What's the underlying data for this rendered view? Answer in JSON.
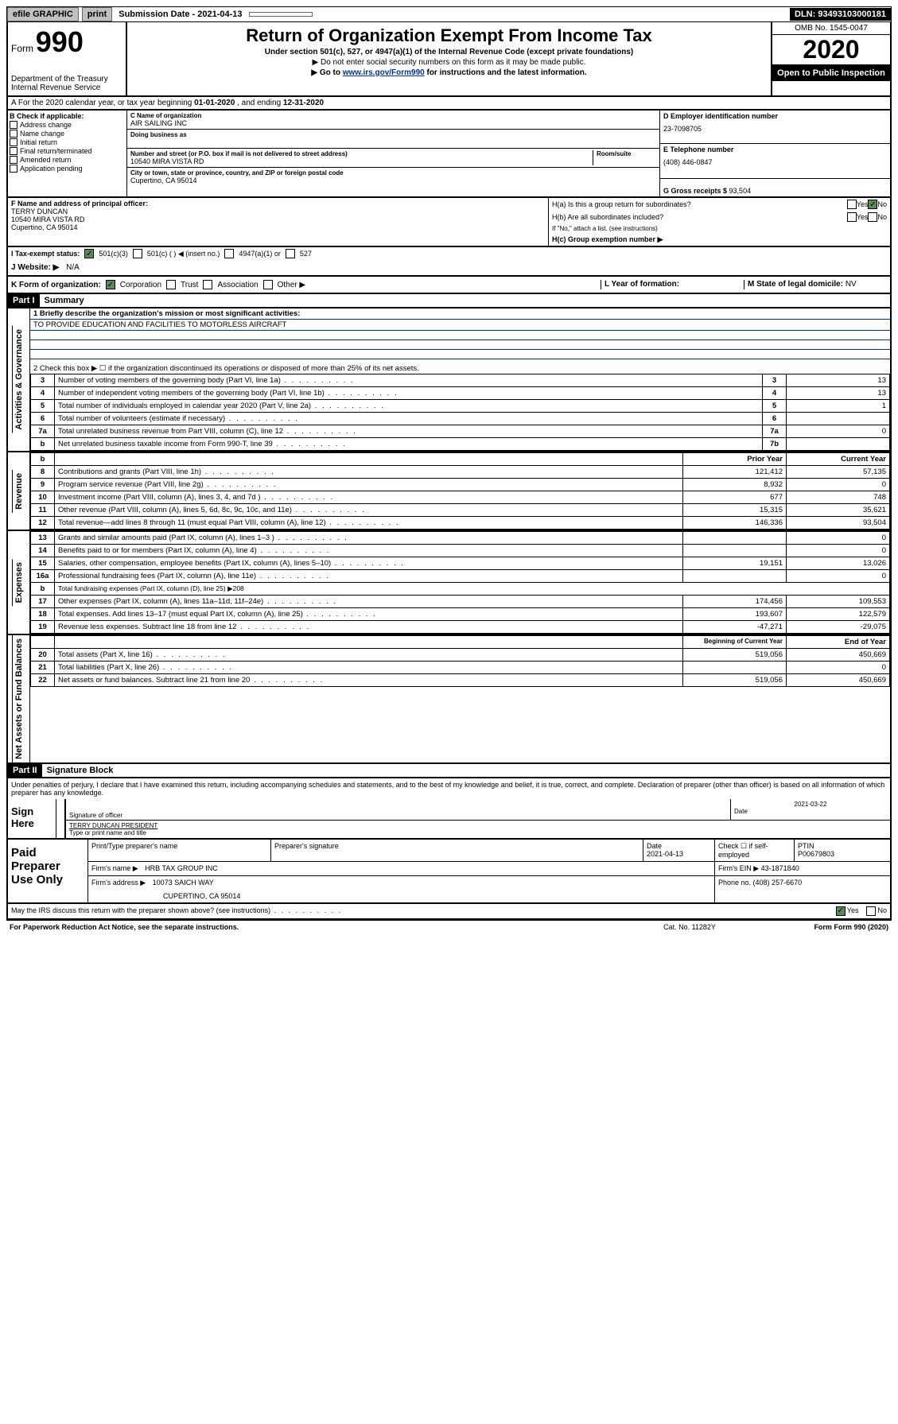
{
  "toolbar": {
    "efile": "efile GRAPHIC",
    "print": "print",
    "sub_label": "Submission Date - 2021-04-13",
    "dln": "DLN: 93493103000181"
  },
  "header": {
    "form_prefix": "Form",
    "form_no": "990",
    "dept": "Department of the Treasury\nInternal Revenue Service",
    "title": "Return of Organization Exempt From Income Tax",
    "subtitle": "Under section 501(c), 527, or 4947(a)(1) of the Internal Revenue Code (except private foundations)",
    "note1": "▶ Do not enter social security numbers on this form as it may be made public.",
    "note2_pre": "▶ Go to ",
    "note2_link": "www.irs.gov/Form990",
    "note2_post": " for instructions and the latest information.",
    "omb": "OMB No. 1545-0047",
    "year": "2020",
    "inspection": "Open to Public Inspection"
  },
  "row_a": {
    "text_pre": "A For the 2020 calendar year, or tax year beginning ",
    "begin": "01-01-2020",
    "mid": " , and ending ",
    "end": "12-31-2020"
  },
  "col_b": {
    "header": "B Check if applicable:",
    "items": [
      "Address change",
      "Name change",
      "Initial return",
      "Final return/terminated",
      "Amended return",
      "Application pending"
    ]
  },
  "col_c": {
    "name_label": "C Name of organization",
    "name": "AIR SAILING INC",
    "dba_label": "Doing business as",
    "addr_label": "Number and street (or P.O. box if mail is not delivered to street address)",
    "room_label": "Room/suite",
    "addr": "10540 MIRA VISTA RD",
    "city_label": "City or town, state or province, country, and ZIP or foreign postal code",
    "city": "Cupertino, CA  95014"
  },
  "col_d": {
    "ein_label": "D Employer identification number",
    "ein": "23-7098705",
    "phone_label": "E Telephone number",
    "phone": "(408) 446-0847",
    "receipts_label": "G Gross receipts $ ",
    "receipts": "93,504"
  },
  "row_f": {
    "label": "F  Name and address of principal officer:",
    "name": "TERRY DUNCAN",
    "addr1": "10540 MIRA VISTA RD",
    "addr2": "Cupertino, CA  95014",
    "ha": "H(a)  Is this a group return for subordinates?",
    "hb": "H(b)  Are all subordinates included?",
    "hb_note": "If \"No,\" attach a list. (see instructions)",
    "hc": "H(c)  Group exemption number ▶"
  },
  "row_i": {
    "label": "I  Tax-exempt status:",
    "opt1": "501(c)(3)",
    "opt2": "501(c) (    ) ◀ (insert no.)",
    "opt3": "4947(a)(1) or",
    "opt4": "527"
  },
  "row_j": {
    "label": "J  Website: ▶",
    "val": "N/A"
  },
  "row_k": {
    "label": "K Form of organization:",
    "opts": [
      "Corporation",
      "Trust",
      "Association",
      "Other ▶"
    ],
    "l_label": "L Year of formation:",
    "m_label": "M State of legal domicile: ",
    "m_val": "NV"
  },
  "part1": {
    "hdr": "Part I",
    "title": "Summary"
  },
  "governance": {
    "tab": "Activities & Governance",
    "q1": "1  Briefly describe the organization's mission or most significant activities:",
    "mission": "TO PROVIDE EDUCATION AND FACILITIES TO MOTORLESS AIRCRAFT",
    "q2": "2  Check this box ▶ ☐  if the organization discontinued its operations or disposed of more than 25% of its net assets.",
    "rows": [
      {
        "n": "3",
        "t": "Number of voting members of the governing body (Part VI, line 1a)",
        "l": "3",
        "v": "13"
      },
      {
        "n": "4",
        "t": "Number of independent voting members of the governing body (Part VI, line 1b)",
        "l": "4",
        "v": "13"
      },
      {
        "n": "5",
        "t": "Total number of individuals employed in calendar year 2020 (Part V, line 2a)",
        "l": "5",
        "v": "1"
      },
      {
        "n": "6",
        "t": "Total number of volunteers (estimate if necessary)",
        "l": "6",
        "v": ""
      },
      {
        "n": "7a",
        "t": "Total unrelated business revenue from Part VIII, column (C), line 12",
        "l": "7a",
        "v": "0"
      },
      {
        "n": "b",
        "t": "Net unrelated business taxable income from Form 990-T, line 39",
        "l": "7b",
        "v": ""
      }
    ]
  },
  "revenue": {
    "tab": "Revenue",
    "hdr_prior": "Prior Year",
    "hdr_curr": "Current Year",
    "rows": [
      {
        "n": "8",
        "t": "Contributions and grants (Part VIII, line 1h)",
        "p": "121,412",
        "c": "57,135"
      },
      {
        "n": "9",
        "t": "Program service revenue (Part VIII, line 2g)",
        "p": "8,932",
        "c": "0"
      },
      {
        "n": "10",
        "t": "Investment income (Part VIII, column (A), lines 3, 4, and 7d )",
        "p": "677",
        "c": "748"
      },
      {
        "n": "11",
        "t": "Other revenue (Part VIII, column (A), lines 5, 6d, 8c, 9c, 10c, and 11e)",
        "p": "15,315",
        "c": "35,621"
      },
      {
        "n": "12",
        "t": "Total revenue—add lines 8 through 11 (must equal Part VIII, column (A), line 12)",
        "p": "146,336",
        "c": "93,504"
      }
    ]
  },
  "expenses": {
    "tab": "Expenses",
    "rows": [
      {
        "n": "13",
        "t": "Grants and similar amounts paid (Part IX, column (A), lines 1–3 )",
        "p": "",
        "c": "0"
      },
      {
        "n": "14",
        "t": "Benefits paid to or for members (Part IX, column (A), line 4)",
        "p": "",
        "c": "0"
      },
      {
        "n": "15",
        "t": "Salaries, other compensation, employee benefits (Part IX, column (A), lines 5–10)",
        "p": "19,151",
        "c": "13,026"
      },
      {
        "n": "16a",
        "t": "Professional fundraising fees (Part IX, column (A), line 11e)",
        "p": "",
        "c": "0"
      },
      {
        "n": "b",
        "t": "Total fundraising expenses (Part IX, column (D), line 25) ▶208",
        "p": "—",
        "c": "—"
      },
      {
        "n": "17",
        "t": "Other expenses (Part IX, column (A), lines 11a–11d, 11f–24e)",
        "p": "174,456",
        "c": "109,553"
      },
      {
        "n": "18",
        "t": "Total expenses. Add lines 13–17 (must equal Part IX, column (A), line 25)",
        "p": "193,607",
        "c": "122,579"
      },
      {
        "n": "19",
        "t": "Revenue less expenses. Subtract line 18 from line 12",
        "p": "-47,271",
        "c": "-29,075"
      }
    ]
  },
  "netassets": {
    "tab": "Net Assets or Fund Balances",
    "hdr_begin": "Beginning of Current Year",
    "hdr_end": "End of Year",
    "rows": [
      {
        "n": "20",
        "t": "Total assets (Part X, line 16)",
        "p": "519,056",
        "c": "450,669"
      },
      {
        "n": "21",
        "t": "Total liabilities (Part X, line 26)",
        "p": "",
        "c": "0"
      },
      {
        "n": "22",
        "t": "Net assets or fund balances. Subtract line 21 from line 20",
        "p": "519,056",
        "c": "450,669"
      }
    ]
  },
  "part2": {
    "hdr": "Part II",
    "title": "Signature Block"
  },
  "sig": {
    "decl": "Under penalties of perjury, I declare that I have examined this return, including accompanying schedules and statements, and to the best of my knowledge and belief, it is true, correct, and complete. Declaration of preparer (other than officer) is based on all information of which preparer has any knowledge.",
    "sign_here": "Sign Here",
    "sig_label": "Signature of officer",
    "date": "2021-03-22",
    "date_label": "Date",
    "name": "TERRY DUNCAN  PRESIDENT",
    "name_label": "Type or print name and title"
  },
  "paid": {
    "label": "Paid Preparer Use Only",
    "h1": "Print/Type preparer's name",
    "h2": "Preparer's signature",
    "h3": "Date",
    "date": "2021-04-13",
    "h4": "Check ☐ if self-employed",
    "h5": "PTIN",
    "ptin": "P00679803",
    "firm_label": "Firm's name     ▶",
    "firm": "HRB TAX GROUP INC",
    "ein_label": "Firm's EIN ▶",
    "ein": "43-1871840",
    "addr_label": "Firm's address ▶",
    "addr1": "10073 SAICH WAY",
    "addr2": "CUPERTINO, CA  95014",
    "phone_label": "Phone no. ",
    "phone": "(408) 257-6670"
  },
  "footer": {
    "q": "May the IRS discuss this return with the preparer shown above? (see instructions)",
    "yes": "Yes",
    "no": "No",
    "paperwork": "For Paperwork Reduction Act Notice, see the separate instructions.",
    "cat": "Cat. No. 11282Y",
    "form": "Form 990 (2020)"
  }
}
